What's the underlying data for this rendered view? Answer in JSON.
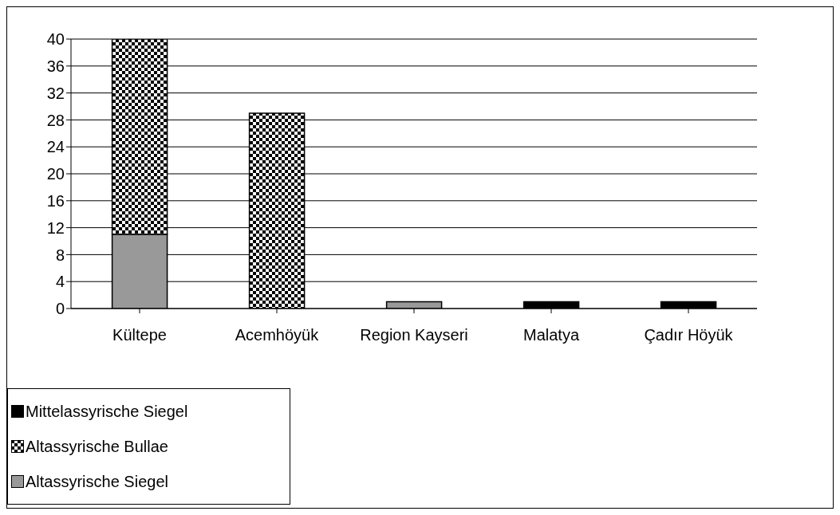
{
  "chart_data": {
    "type": "bar",
    "stacked": true,
    "categories": [
      "Kültepe",
      "Acemhöyük",
      "Region Kayseri",
      "Malatya",
      "Çadır Höyük"
    ],
    "series": [
      {
        "name": "Altassyrische Siegel",
        "color": "#999999",
        "values": [
          11,
          0,
          1,
          0,
          0
        ]
      },
      {
        "name": "Altassyrische Bullae",
        "color": "#000000",
        "values": [
          29,
          29,
          0,
          0,
          0
        ]
      },
      {
        "name": "Mittelassyrische Siegel",
        "color": "#000000",
        "values": [
          0,
          0,
          0,
          1,
          1
        ]
      }
    ],
    "ylim": [
      0,
      40
    ],
    "yticks": [
      0,
      4,
      8,
      12,
      16,
      20,
      24,
      28,
      32,
      36,
      40
    ],
    "grid": "y",
    "legend": "bottom left"
  }
}
